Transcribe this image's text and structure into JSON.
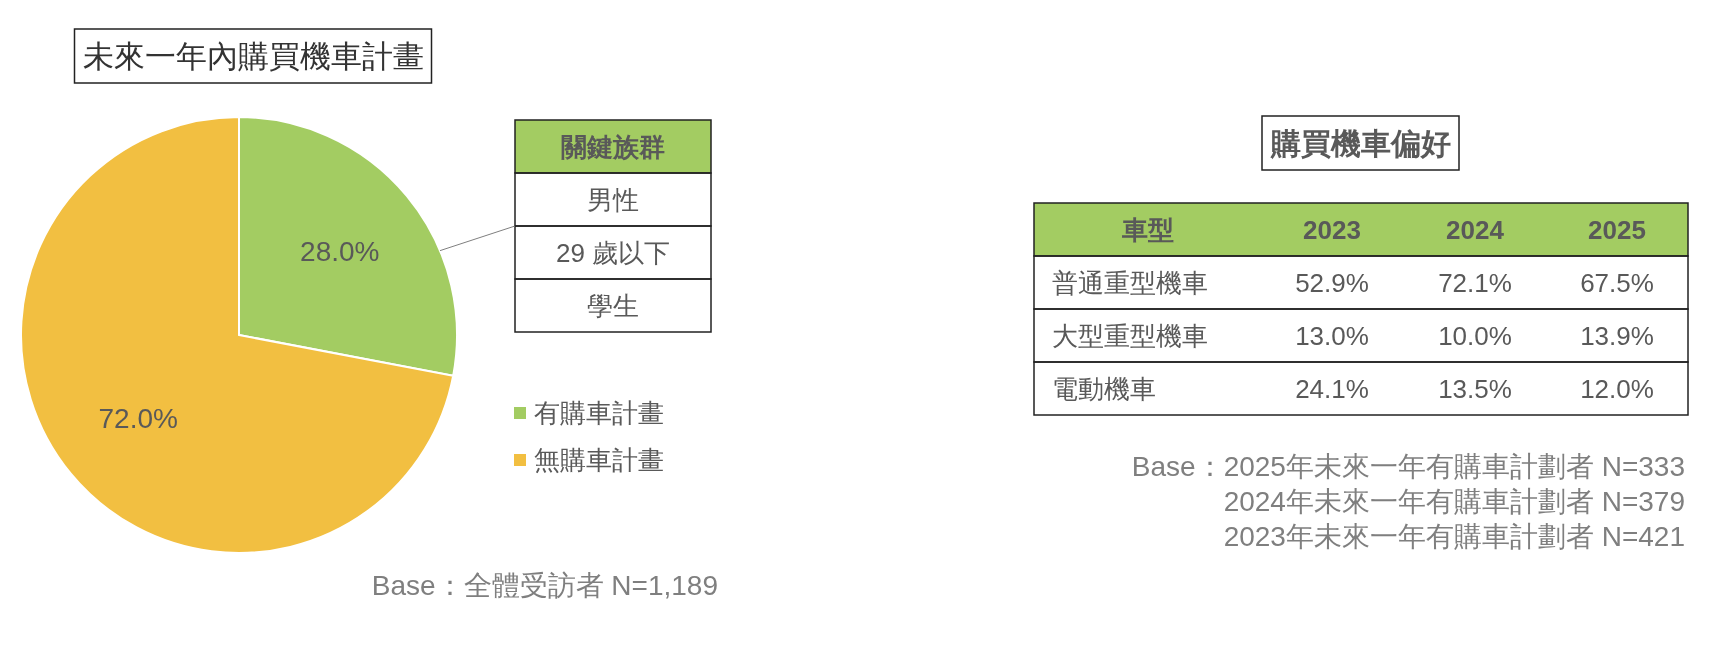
{
  "chart_data": [
    {
      "type": "pie",
      "title": "未來一年內購買機車計畫",
      "categories": [
        "有購車計畫",
        "無購車計畫"
      ],
      "values": [
        28.0,
        72.0
      ],
      "colors": [
        "#a3cc62",
        "#f2bf41"
      ],
      "value_labels": [
        "28.0%",
        "72.0%"
      ],
      "legend": "right",
      "annotations": [
        "Base：全體受訪者 N=1,189"
      ]
    },
    {
      "type": "other",
      "title": "關鍵族群",
      "annotations": [
        "男性",
        "29 歲以下",
        "學生"
      ]
    },
    {
      "type": "other",
      "title": "購買機車偏好",
      "legend_title": "車型",
      "categories": [
        "2023",
        "2024",
        "2025"
      ],
      "series": [
        {
          "name": "普通重型機車",
          "values": [
            52.9,
            72.1,
            67.5
          ],
          "value_labels": [
            "52.9%",
            "72.1%",
            "67.5%"
          ]
        },
        {
          "name": "大型重型機車",
          "values": [
            13.0,
            10.0,
            13.9
          ],
          "value_labels": [
            "13.0%",
            "10.0%",
            "13.9%"
          ]
        },
        {
          "name": "電動機車",
          "values": [
            24.1,
            13.5,
            12.0
          ],
          "value_labels": [
            "24.1%",
            "13.5%",
            "12.0%"
          ]
        }
      ],
      "annotations": [
        "Base：2025年未來一年有購車計劃者 N=333",
        "2024年未來一年有購車計劃者 N=379",
        "2023年未來一年有購車計劃者 N=421"
      ]
    }
  ]
}
